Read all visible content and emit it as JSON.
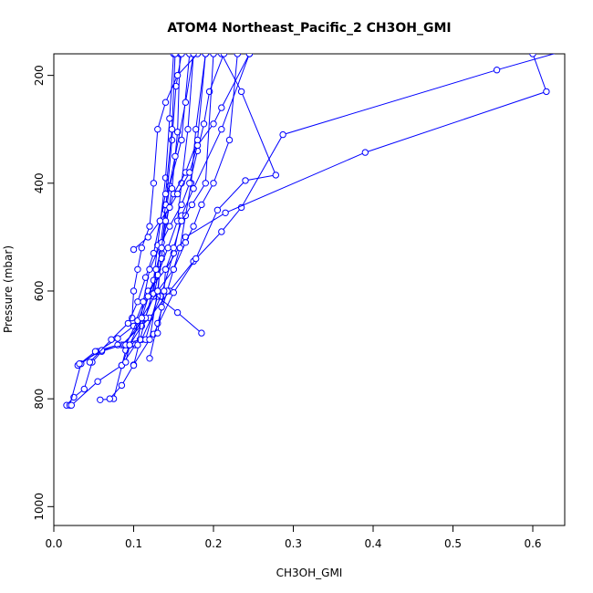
{
  "chart_data": {
    "type": "line",
    "title": "ATOM4 Northeast_Pacific_2 CH3OH_GMI",
    "xlabel": "CH3OH_GMI",
    "ylabel": "Pressure (mbar)",
    "xlim": [
      0,
      0.64
    ],
    "ylim": [
      1035,
      160
    ],
    "y_reversed": true,
    "grid": false,
    "marker": "open-circle",
    "color": "#0000ff",
    "x_ticks": [
      "0.0",
      "0.1",
      "0.2",
      "0.3",
      "0.4",
      "0.5",
      "0.6"
    ],
    "y_ticks": [
      "200",
      "400",
      "600",
      "800",
      "1000"
    ],
    "series": [
      {
        "x": [
          0.016,
          0.025,
          0.038,
          0.048,
          0.06,
          0.085,
          0.12,
          0.145,
          0.175,
          0.21,
          0.235,
          0.287,
          0.555,
          0.65
        ],
        "y": [
          812,
          797,
          782,
          732,
          712,
          700,
          650,
          600,
          545,
          490,
          445,
          310,
          190,
          150
        ]
      },
      {
        "x": [
          0.02,
          0.034,
          0.055,
          0.08,
          0.1,
          0.118,
          0.14,
          0.165,
          0.215,
          0.39,
          0.617,
          0.6
        ],
        "y": [
          812,
          735,
          712,
          688,
          665,
          600,
          560,
          500,
          455,
          343,
          230,
          160
        ]
      },
      {
        "x": [
          0.022,
          0.055,
          0.085,
          0.102,
          0.125,
          0.15,
          0.178,
          0.205,
          0.24,
          0.278,
          0.235,
          0.21
        ],
        "y": [
          812,
          768,
          738,
          700,
          680,
          603,
          540,
          450,
          395,
          385,
          230,
          160
        ]
      },
      {
        "x": [
          0.03,
          0.052,
          0.08,
          0.11,
          0.134,
          0.15,
          0.16,
          0.175,
          0.21,
          0.245
        ],
        "y": [
          738,
          712,
          700,
          690,
          610,
          530,
          460,
          410,
          300,
          160
        ]
      },
      {
        "x": [
          0.058,
          0.075,
          0.09,
          0.115,
          0.13,
          0.135,
          0.145,
          0.16,
          0.17
        ],
        "y": [
          802,
          800,
          710,
          690,
          610,
          520,
          405,
          320,
          160
        ]
      },
      {
        "x": [
          0.07,
          0.085,
          0.1,
          0.12,
          0.13,
          0.135,
          0.148,
          0.155,
          0.158
        ],
        "y": [
          800,
          775,
          737,
          690,
          600,
          530,
          410,
          305,
          160
        ]
      },
      {
        "x": [
          0.032,
          0.06,
          0.088,
          0.108,
          0.125,
          0.13,
          0.14,
          0.145,
          0.15
        ],
        "y": [
          735,
          710,
          700,
          660,
          580,
          515,
          390,
          280,
          160
        ]
      },
      {
        "x": [
          0.085,
          0.095,
          0.11,
          0.125,
          0.135,
          0.14,
          0.148,
          0.153,
          0.16
        ],
        "y": [
          738,
          700,
          665,
          610,
          540,
          450,
          320,
          220,
          160
        ]
      },
      {
        "x": [
          0.1,
          0.108,
          0.115,
          0.123,
          0.13,
          0.14,
          0.152,
          0.165,
          0.175
        ],
        "y": [
          738,
          690,
          650,
          605,
          560,
          440,
          350,
          250,
          160
        ]
      },
      {
        "x": [
          0.098,
          0.1,
          0.105,
          0.11,
          0.12,
          0.125,
          0.13,
          0.14,
          0.155,
          0.18
        ],
        "y": [
          650,
          600,
          560,
          520,
          480,
          400,
          300,
          250,
          200,
          160
        ]
      },
      {
        "x": [
          0.045,
          0.072,
          0.093,
          0.105,
          0.115,
          0.125,
          0.133,
          0.14,
          0.148,
          0.152
        ],
        "y": [
          732,
          690,
          660,
          620,
          575,
          530,
          470,
          420,
          300,
          160
        ]
      },
      {
        "x": [
          0.09,
          0.105,
          0.118,
          0.13,
          0.143,
          0.155,
          0.16,
          0.168,
          0.175
        ],
        "y": [
          700,
          655,
          610,
          570,
          520,
          470,
          400,
          300,
          160
        ]
      },
      {
        "x": [
          0.12,
          0.13,
          0.142,
          0.15,
          0.158,
          0.165,
          0.172,
          0.178,
          0.19
        ],
        "y": [
          725,
          660,
          600,
          560,
          520,
          460,
          400,
          300,
          160
        ]
      },
      {
        "x": [
          0.105,
          0.112,
          0.12,
          0.135,
          0.145,
          0.16,
          0.17,
          0.18,
          0.188,
          0.195,
          0.213
        ],
        "y": [
          700,
          620,
          560,
          510,
          480,
          440,
          400,
          340,
          290,
          230,
          160
        ]
      },
      {
        "x": [
          0.185,
          0.155,
          0.125,
          0.128,
          0.135,
          0.14,
          0.15,
          0.165,
          0.18,
          0.19
        ],
        "y": [
          678,
          640,
          605,
          560,
          520,
          470,
          420,
          380,
          320,
          160
        ]
      },
      {
        "x": [
          0.09,
          0.095,
          0.11,
          0.13,
          0.15,
          0.165,
          0.175,
          0.185,
          0.2,
          0.22,
          0.23
        ],
        "y": [
          732,
          700,
          650,
          600,
          560,
          510,
          480,
          440,
          400,
          320,
          160
        ]
      },
      {
        "x": [
          0.1,
          0.118,
          0.133,
          0.145,
          0.155,
          0.17,
          0.18,
          0.2,
          0.21,
          0.245
        ],
        "y": [
          523,
          500,
          470,
          445,
          420,
          380,
          330,
          290,
          260,
          160
        ]
      },
      {
        "x": [
          0.13,
          0.135,
          0.138,
          0.14,
          0.15,
          0.16,
          0.173,
          0.19,
          0.2
        ],
        "y": [
          678,
          630,
          600,
          560,
          520,
          470,
          440,
          400,
          160
        ]
      }
    ]
  }
}
